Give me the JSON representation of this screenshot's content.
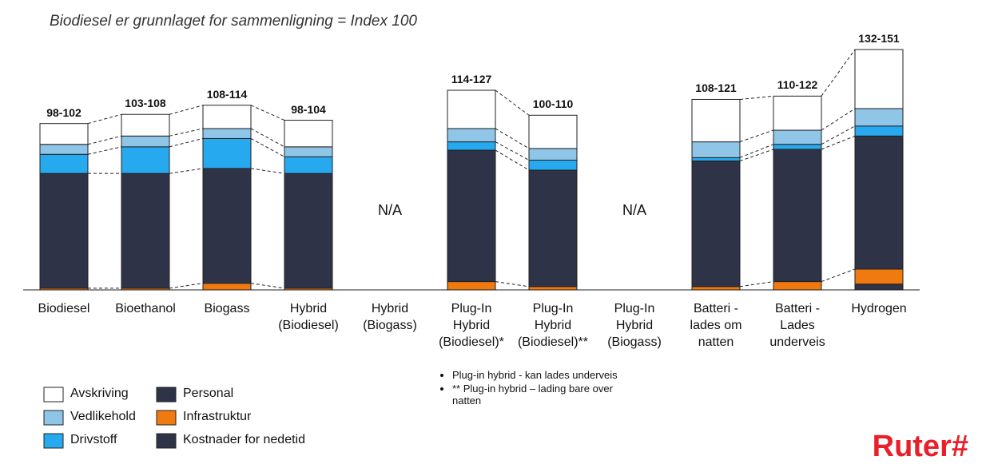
{
  "chart_data": {
    "type": "stacked_bar",
    "title": "Biodiesel er grunnlaget for sammenligning = Index 100",
    "categories": [
      "Biodiesel",
      "Bioethanol",
      "Biogass",
      "Hybrid\n(Biodiesel)",
      "Hybrid\n(Biogass)",
      "Plug-In\nHybrid\n(Biodiesel)*",
      "Plug-In\nHybrid\n(Biodiesel)**",
      "Plug-In\nHybrid\n(Biogass)",
      "Batteri -\nlades om\nnatten",
      "Batteri -\nLades\nunderveis",
      "Hydrogen"
    ],
    "total_labels": [
      "98-102",
      "103-108",
      "108-114",
      "98-104",
      null,
      "114-127",
      "100-110",
      null,
      "108-121",
      "110-122",
      "132-151"
    ],
    "na_label": "N/A",
    "series": [
      {
        "name": "Kostnader for nedetid",
        "color": "#2f3347",
        "values": [
          0,
          0,
          0,
          0,
          null,
          0,
          0,
          null,
          0,
          0,
          3.5
        ]
      },
      {
        "name": "Infrastruktur",
        "color": "#f07a10",
        "values": [
          1,
          1,
          4,
          1,
          null,
          5,
          2,
          null,
          2,
          5,
          9
        ]
      },
      {
        "name": "Personal",
        "color": "#2f3347",
        "values": [
          69,
          69,
          69,
          69,
          null,
          79,
          70,
          null,
          75.5,
          79.5,
          80
        ]
      },
      {
        "name": "Drivstoff",
        "color": "#27a9f0",
        "values": [
          11.5,
          16,
          18,
          10,
          null,
          5,
          6,
          null,
          2,
          3,
          6
        ]
      },
      {
        "name": "Vedlikehold",
        "color": "#8fc6e8",
        "values": [
          6,
          6.5,
          6,
          6,
          null,
          8,
          7,
          null,
          9.5,
          8.5,
          10.5
        ]
      },
      {
        "name": "Avskriving",
        "color": "#ffffff",
        "values": [
          12.5,
          13,
          14,
          16,
          null,
          23,
          20,
          null,
          25.5,
          20.5,
          35.5
        ]
      }
    ],
    "notes": [
      "Plug-in hybrid - kan lades underveis",
      "** Plug-in hybrid – lading bare over natten"
    ],
    "logo": "Ruter#"
  }
}
